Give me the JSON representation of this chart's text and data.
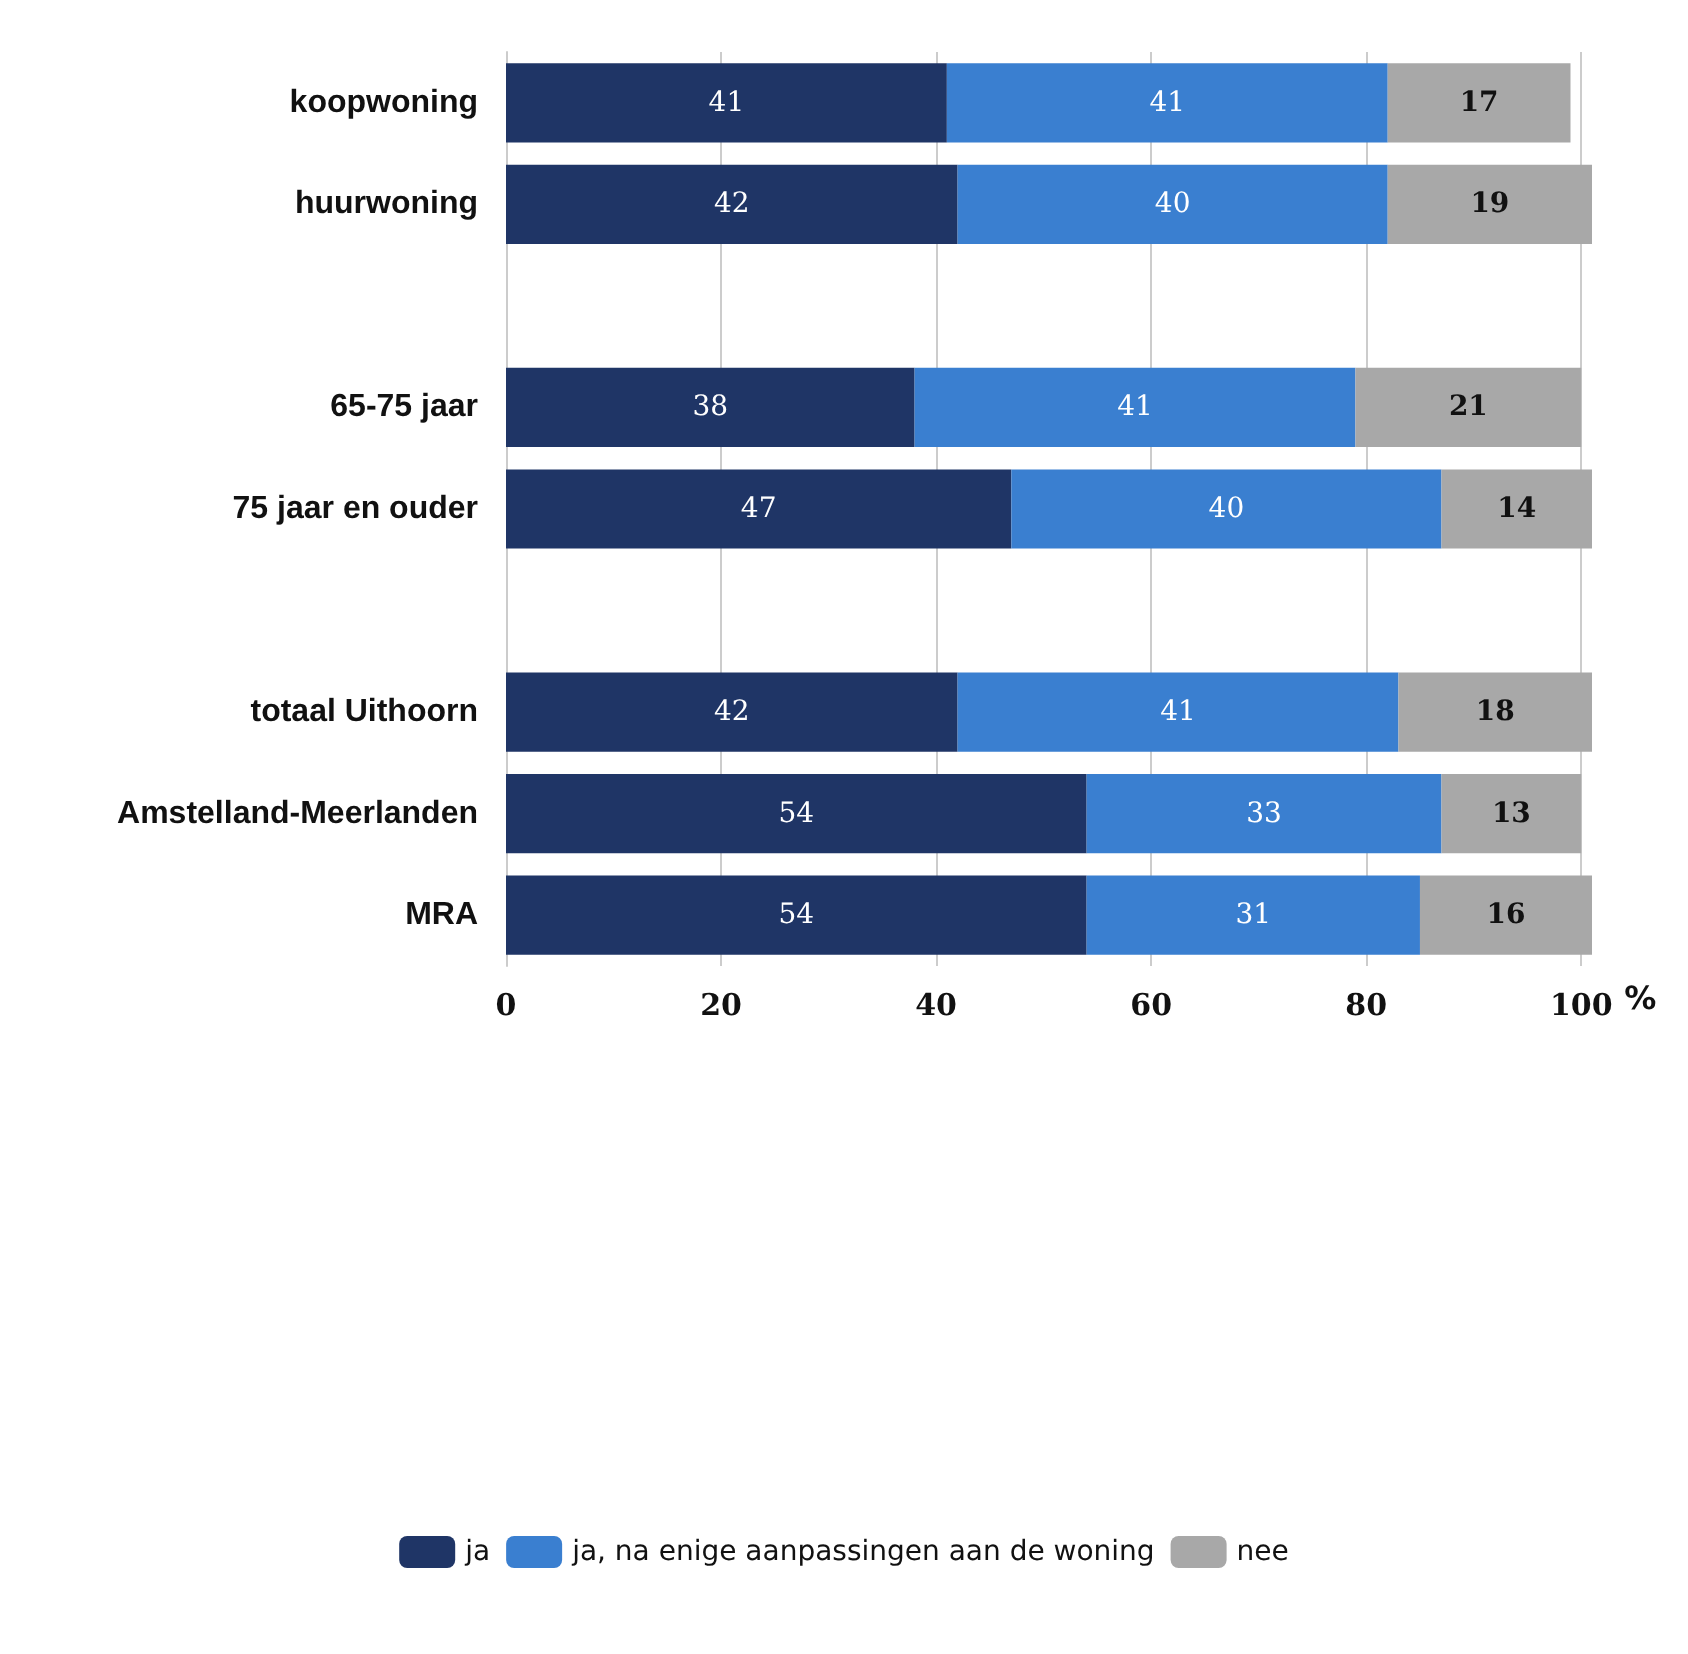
{
  "chart_data": {
    "type": "bar",
    "orientation": "horizontal",
    "stacked": true,
    "xlabel": "%",
    "categories": [
      "koopwoning",
      "huurwoning",
      null,
      "65-75 jaar",
      "75 jaar en ouder",
      null,
      "totaal Uithoorn",
      "Amstelland-Meerlanden",
      "MRA"
    ],
    "series": [
      {
        "name": "ja",
        "color": "#1f3566",
        "values": [
          41,
          42,
          null,
          38,
          47,
          null,
          42,
          54,
          54
        ]
      },
      {
        "name": "ja, na enige aanpassingen aan de woning",
        "color": "#3a7fd0",
        "values": [
          41,
          40,
          null,
          41,
          40,
          null,
          41,
          33,
          31
        ]
      },
      {
        "name": "nee",
        "color": "#a8a8a8",
        "values": [
          17,
          19,
          null,
          21,
          14,
          null,
          18,
          13,
          16
        ]
      }
    ],
    "xlim": [
      0,
      101
    ],
    "xticks": [
      0,
      20,
      40,
      60,
      80,
      100
    ],
    "grid": "x",
    "data_labels": true,
    "legend": "bottom"
  }
}
